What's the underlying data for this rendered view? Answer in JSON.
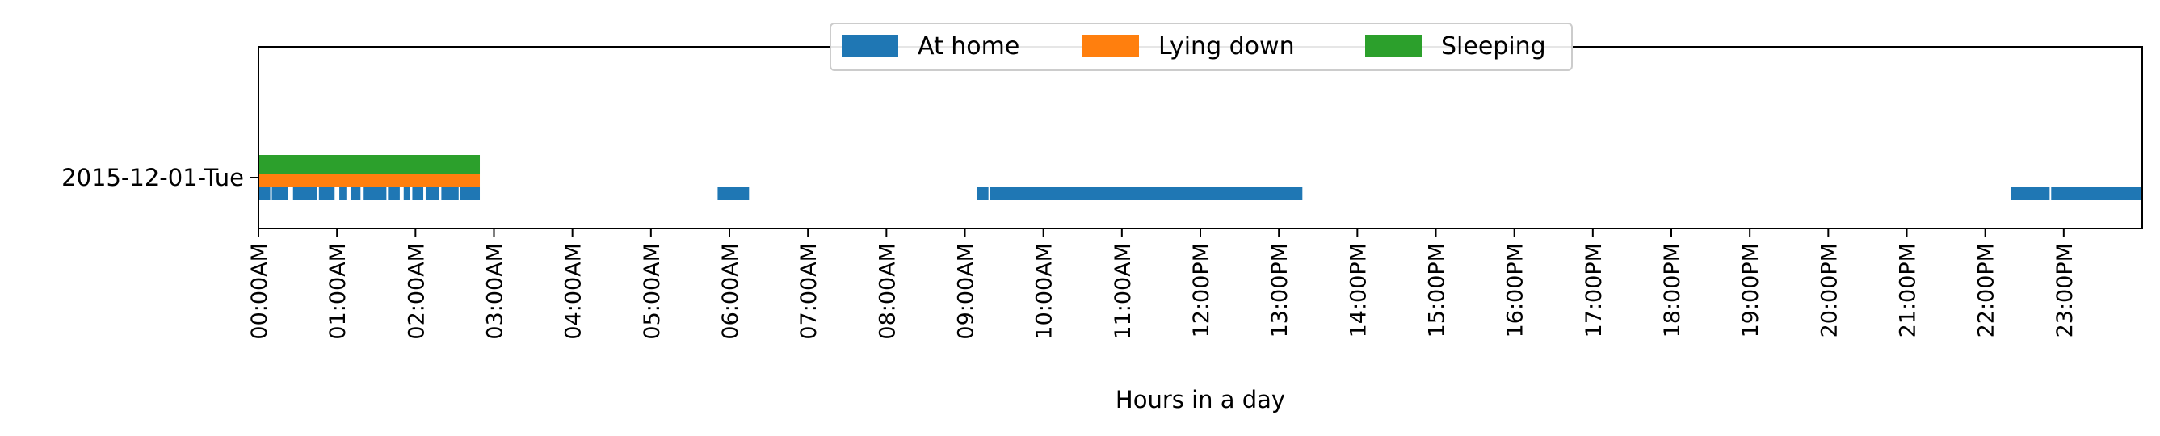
{
  "chart_data": {
    "type": "timeline",
    "title": "",
    "xlabel": "Hours in a day",
    "ylabel": "",
    "x_unit": "hours",
    "xlim": [
      0,
      24
    ],
    "xticks": [
      {
        "h": 0,
        "label": "00:00AM"
      },
      {
        "h": 1,
        "label": "01:00AM"
      },
      {
        "h": 2,
        "label": "02:00AM"
      },
      {
        "h": 3,
        "label": "03:00AM"
      },
      {
        "h": 4,
        "label": "04:00AM"
      },
      {
        "h": 5,
        "label": "05:00AM"
      },
      {
        "h": 6,
        "label": "06:00AM"
      },
      {
        "h": 7,
        "label": "07:00AM"
      },
      {
        "h": 8,
        "label": "08:00AM"
      },
      {
        "h": 9,
        "label": "09:00AM"
      },
      {
        "h": 10,
        "label": "10:00AM"
      },
      {
        "h": 11,
        "label": "11:00AM"
      },
      {
        "h": 12,
        "label": "12:00PM"
      },
      {
        "h": 13,
        "label": "13:00PM"
      },
      {
        "h": 14,
        "label": "14:00PM"
      },
      {
        "h": 15,
        "label": "15:00PM"
      },
      {
        "h": 16,
        "label": "16:00PM"
      },
      {
        "h": 17,
        "label": "17:00PM"
      },
      {
        "h": 18,
        "label": "18:00PM"
      },
      {
        "h": 19,
        "label": "19:00PM"
      },
      {
        "h": 20,
        "label": "20:00PM"
      },
      {
        "h": 21,
        "label": "21:00PM"
      },
      {
        "h": 22,
        "label": "22:00PM"
      },
      {
        "h": 23,
        "label": "23:00PM"
      }
    ],
    "rows": [
      "2015-12-01-Tue"
    ],
    "legend": {
      "placement": "top-center",
      "columns": 3
    },
    "series": [
      {
        "name": "At home",
        "color": "#1f77b4",
        "row": "2015-12-01-Tue",
        "intervals": [
          [
            0.0,
            0.15
          ],
          [
            0.17,
            0.38
          ],
          [
            0.44,
            0.75
          ],
          [
            0.77,
            0.97
          ],
          [
            1.03,
            1.12
          ],
          [
            1.18,
            1.3
          ],
          [
            1.33,
            1.63
          ],
          [
            1.65,
            1.8
          ],
          [
            1.85,
            1.93
          ],
          [
            1.96,
            2.1
          ],
          [
            2.13,
            2.3
          ],
          [
            2.33,
            2.55
          ],
          [
            2.57,
            2.82
          ],
          [
            5.85,
            6.25
          ],
          [
            9.15,
            9.3
          ],
          [
            9.32,
            13.3
          ],
          [
            22.33,
            22.82
          ],
          [
            22.84,
            24.0
          ]
        ]
      },
      {
        "name": "Lying down",
        "color": "#ff7f0e",
        "row": "2015-12-01-Tue",
        "intervals": [
          [
            0.0,
            2.82
          ]
        ]
      },
      {
        "name": "Sleeping",
        "color": "#2ca02c",
        "row": "2015-12-01-Tue",
        "intervals": [
          [
            0.0,
            2.82
          ]
        ]
      }
    ]
  }
}
